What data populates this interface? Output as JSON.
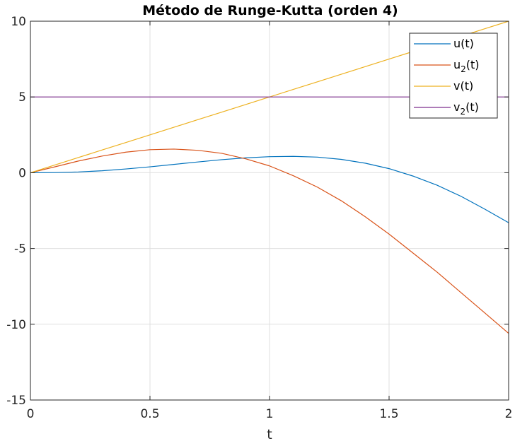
{
  "chart_data": {
    "type": "line",
    "title": "Método de Runge-Kutta (orden 4)",
    "xlabel": "t",
    "ylabel": "",
    "xlim": [
      0,
      2
    ],
    "ylim": [
      -15,
      10
    ],
    "xticks": [
      0,
      0.5,
      1,
      1.5,
      2
    ],
    "xtick_labels": [
      "0",
      "0.5",
      "1",
      "1.5",
      "2"
    ],
    "yticks": [
      -15,
      -10,
      -5,
      0,
      5,
      10
    ],
    "ytick_labels": [
      "-15",
      "-10",
      "-5",
      "0",
      "5",
      "10"
    ],
    "grid": true,
    "legend_position": "top-right",
    "x": [
      0,
      0.1,
      0.2,
      0.3,
      0.4,
      0.5,
      0.6,
      0.7,
      0.8,
      0.9,
      1.0,
      1.1,
      1.2,
      1.3,
      1.4,
      1.5,
      1.6,
      1.7,
      1.8,
      1.9,
      2.0
    ],
    "series": [
      {
        "name": "u(t)",
        "legend_base": "u",
        "legend_sub": "",
        "legend_rest": "(t)",
        "color": "#0072BD",
        "values": [
          0,
          0.01,
          0.05,
          0.13,
          0.25,
          0.39,
          0.55,
          0.71,
          0.86,
          0.98,
          1.06,
          1.08,
          1.03,
          0.88,
          0.63,
          0.27,
          -0.22,
          -0.82,
          -1.55,
          -2.4,
          -3.3
        ]
      },
      {
        "name": "u2(t)",
        "legend_base": "u",
        "legend_sub": "2",
        "legend_rest": "(t)",
        "color": "#D95319",
        "values": [
          0,
          0.38,
          0.77,
          1.1,
          1.36,
          1.52,
          1.56,
          1.48,
          1.28,
          0.92,
          0.45,
          -0.2,
          -0.95,
          -1.85,
          -2.9,
          -4.05,
          -5.3,
          -6.55,
          -7.9,
          -9.25,
          -10.6
        ]
      },
      {
        "name": "v(t)",
        "legend_base": "v",
        "legend_sub": "",
        "legend_rest": "(t)",
        "color": "#EDB120",
        "values": [
          0,
          0.5,
          1.0,
          1.5,
          2.0,
          2.5,
          3.0,
          3.5,
          4.0,
          4.5,
          5.0,
          5.5,
          6.0,
          6.5,
          7.0,
          7.5,
          8.0,
          8.5,
          9.0,
          9.5,
          10.0
        ]
      },
      {
        "name": "v2(t)",
        "legend_base": "v",
        "legend_sub": "2",
        "legend_rest": "(t)",
        "color": "#7E2F8E",
        "values": [
          5,
          5,
          5,
          5,
          5,
          5,
          5,
          5,
          5,
          5,
          5,
          5,
          5,
          5,
          5,
          5,
          5,
          5,
          5,
          5,
          5
        ]
      }
    ]
  }
}
